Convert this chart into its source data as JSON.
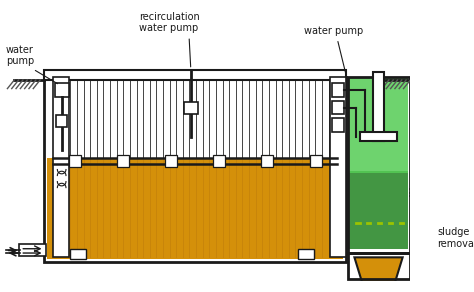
{
  "fig_width": 4.74,
  "fig_height": 2.92,
  "dpi": 100,
  "bg_color": "#ffffff",
  "amber": "#D4900A",
  "green_top": "#4CAF50",
  "green_bottom": "#2E7D32",
  "lc": "#1a1a1a",
  "gray": "#888888",
  "yellow_green": "#9BC400",
  "labels": {
    "water_pump_left": "water\npump",
    "recirculation": "recirculation\nwater pump",
    "water_pump_right": "water pump",
    "sludge": "sludge\nremoval"
  }
}
